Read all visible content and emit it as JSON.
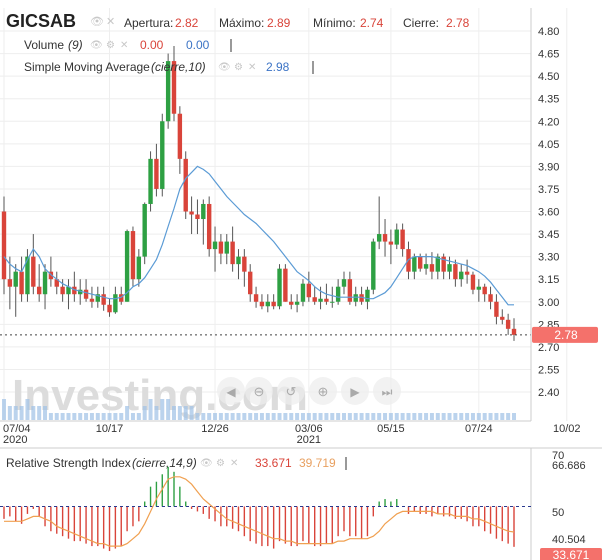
{
  "header": {
    "symbol": "GICSAB",
    "ohlc": [
      {
        "label": "Apertura:",
        "value": "2.82"
      },
      {
        "label": "Máximo:",
        "value": "2.89"
      },
      {
        "label": "Mínimo:",
        "value": "2.74"
      },
      {
        "label": "Cierre:",
        "value": "2.78"
      }
    ],
    "volume": {
      "label": "Volume",
      "param": "(9)",
      "value1": "0.00",
      "value2": "0.00"
    },
    "sma": {
      "label": "Simple Moving Average",
      "param": "(cierre,10)",
      "value": "2.98"
    }
  },
  "rsi_header": {
    "label": "Relative Strength Index",
    "param": "(cierre,14,9)",
    "value1": "33.671",
    "value2": "39.719"
  },
  "watermark": "Investing.com",
  "colors": {
    "up": "#2ea043",
    "down": "#d9443a",
    "sma": "#5b9bd5",
    "rsi_line": "#f0a050",
    "rsi_ref": "#2b3a8f",
    "price_tag_bg": "#f4716b",
    "text_red": "#d9443a",
    "text_blue": "#3b73c5",
    "text_orange": "#e8a060",
    "grid": "#eeeeee"
  },
  "chart_data": [
    {
      "type": "candlestick",
      "title": "GICSAB",
      "x_labels": [
        {
          "index": 0,
          "label": "07/04",
          "sublabel": "2020"
        },
        {
          "index": 18,
          "label": "10/17",
          "sublabel": ""
        },
        {
          "index": 36,
          "label": "12/26",
          "sublabel": ""
        },
        {
          "index": 52,
          "label": "03/06",
          "sublabel": "2021"
        },
        {
          "index": 66,
          "label": "05/15",
          "sublabel": ""
        },
        {
          "index": 81,
          "label": "07/24",
          "sublabel": ""
        },
        {
          "index": 96,
          "label": "10/02",
          "sublabel": ""
        }
      ],
      "y_ticks": [
        "4.80",
        "4.65",
        "4.50",
        "4.35",
        "4.20",
        "4.05",
        "3.90",
        "3.75",
        "3.60",
        "3.45",
        "3.30",
        "3.15",
        "3.00",
        "2.85",
        "2.70",
        "2.55",
        "2.40"
      ],
      "ylim": [
        2.33,
        4.87
      ],
      "last_price": {
        "value": 2.78,
        "label": "2.78"
      },
      "ohlc": [
        [
          3.6,
          3.7,
          3.05,
          3.15
        ],
        [
          3.15,
          3.3,
          2.95,
          3.1
        ],
        [
          3.1,
          3.25,
          2.9,
          3.2
        ],
        [
          3.2,
          3.3,
          3.0,
          3.05
        ],
        [
          3.05,
          3.35,
          3.0,
          3.3
        ],
        [
          3.3,
          3.45,
          3.05,
          3.1
        ],
        [
          3.1,
          3.25,
          3.0,
          3.05
        ],
        [
          3.05,
          3.25,
          2.95,
          3.2
        ],
        [
          3.2,
          3.3,
          3.1,
          3.15
        ],
        [
          3.15,
          3.2,
          3.05,
          3.1
        ],
        [
          3.1,
          3.15,
          3.0,
          3.05
        ],
        [
          3.05,
          3.15,
          2.95,
          3.1
        ],
        [
          3.1,
          3.2,
          3.0,
          3.05
        ],
        [
          3.05,
          3.15,
          2.98,
          3.08
        ],
        [
          3.08,
          3.15,
          3.0,
          3.02
        ],
        [
          3.02,
          3.1,
          2.96,
          3.0
        ],
        [
          3.0,
          3.1,
          2.96,
          3.05
        ],
        [
          3.05,
          3.1,
          2.94,
          2.98
        ],
        [
          2.98,
          3.02,
          2.9,
          2.93
        ],
        [
          2.93,
          3.1,
          2.92,
          3.05
        ],
        [
          3.05,
          3.1,
          2.98,
          3.0
        ],
        [
          3.0,
          3.48,
          3.0,
          3.47
        ],
        [
          3.47,
          3.5,
          3.1,
          3.15
        ],
        [
          3.15,
          3.35,
          3.1,
          3.3
        ],
        [
          3.3,
          3.66,
          3.25,
          3.65
        ],
        [
          3.65,
          4.0,
          3.6,
          3.95
        ],
        [
          3.95,
          4.05,
          3.7,
          3.75
        ],
        [
          3.75,
          4.25,
          3.7,
          4.2
        ],
        [
          4.2,
          4.65,
          4.15,
          4.6
        ],
        [
          4.6,
          4.7,
          4.2,
          4.25
        ],
        [
          4.25,
          4.3,
          3.85,
          3.95
        ],
        [
          3.95,
          4.0,
          3.55,
          3.6
        ],
        [
          3.6,
          3.7,
          3.45,
          3.58
        ],
        [
          3.58,
          3.68,
          3.45,
          3.55
        ],
        [
          3.55,
          3.68,
          3.38,
          3.65
        ],
        [
          3.65,
          3.7,
          3.3,
          3.35
        ],
        [
          3.35,
          3.5,
          3.2,
          3.4
        ],
        [
          3.4,
          3.45,
          3.25,
          3.32
        ],
        [
          3.32,
          3.45,
          3.25,
          3.4
        ],
        [
          3.4,
          3.5,
          3.2,
          3.25
        ],
        [
          3.25,
          3.35,
          3.15,
          3.3
        ],
        [
          3.3,
          3.35,
          3.1,
          3.2
        ],
        [
          3.2,
          3.25,
          3.0,
          3.05
        ],
        [
          3.05,
          3.1,
          2.96,
          3.0
        ],
        [
          3.0,
          3.05,
          2.95,
          2.97
        ],
        [
          2.97,
          3.05,
          2.93,
          3.0
        ],
        [
          3.0,
          3.05,
          2.95,
          2.97
        ],
        [
          2.97,
          3.25,
          2.95,
          3.22
        ],
        [
          3.22,
          3.25,
          3.0,
          3.0
        ],
        [
          3.0,
          3.05,
          2.95,
          2.98
        ],
        [
          2.98,
          3.05,
          2.93,
          3.0
        ],
        [
          3.0,
          3.15,
          2.97,
          3.12
        ],
        [
          3.12,
          3.2,
          3.0,
          3.03
        ],
        [
          3.03,
          3.1,
          2.98,
          3.0
        ],
        [
          3.0,
          3.1,
          2.95,
          3.02
        ],
        [
          3.02,
          3.12,
          2.98,
          3.0
        ],
        [
          3.0,
          3.1,
          2.96,
          3.0
        ],
        [
          3.0,
          3.15,
          2.98,
          3.1
        ],
        [
          3.1,
          3.2,
          3.05,
          3.15
        ],
        [
          3.15,
          3.2,
          2.98,
          3.0
        ],
        [
          3.0,
          3.1,
          2.97,
          3.05
        ],
        [
          3.05,
          3.1,
          2.98,
          3.0
        ],
        [
          3.0,
          3.1,
          2.95,
          3.08
        ],
        [
          3.08,
          3.42,
          3.05,
          3.4
        ],
        [
          3.4,
          3.7,
          3.35,
          3.45
        ],
        [
          3.45,
          3.55,
          3.3,
          3.4
        ],
        [
          3.4,
          3.48,
          3.25,
          3.38
        ],
        [
          3.38,
          3.52,
          3.35,
          3.48
        ],
        [
          3.48,
          3.52,
          3.3,
          3.35
        ],
        [
          3.35,
          3.4,
          3.15,
          3.2
        ],
        [
          3.2,
          3.32,
          3.15,
          3.3
        ],
        [
          3.3,
          3.32,
          3.2,
          3.22
        ],
        [
          3.22,
          3.32,
          3.18,
          3.25
        ],
        [
          3.25,
          3.33,
          3.15,
          3.2
        ],
        [
          3.2,
          3.32,
          3.15,
          3.3
        ],
        [
          3.3,
          3.32,
          3.15,
          3.2
        ],
        [
          3.2,
          3.3,
          3.15,
          3.25
        ],
        [
          3.25,
          3.28,
          3.1,
          3.15
        ],
        [
          3.15,
          3.25,
          3.1,
          3.2
        ],
        [
          3.2,
          3.28,
          3.12,
          3.18
        ],
        [
          3.18,
          3.2,
          3.05,
          3.08
        ],
        [
          3.08,
          3.15,
          3.0,
          3.1
        ],
        [
          3.1,
          3.12,
          3.0,
          3.05
        ],
        [
          3.05,
          3.1,
          2.95,
          3.0
        ],
        [
          3.0,
          3.05,
          2.85,
          2.9
        ],
        [
          2.9,
          2.95,
          2.85,
          2.88
        ],
        [
          2.88,
          2.92,
          2.78,
          2.82
        ],
        [
          2.82,
          2.89,
          2.74,
          2.78
        ]
      ],
      "sma": [
        3.3,
        3.25,
        3.22,
        3.2,
        3.28,
        3.35,
        3.3,
        3.22,
        3.18,
        3.15,
        3.12,
        3.1,
        3.08,
        3.07,
        3.06,
        3.05,
        3.04,
        3.03,
        3.02,
        3.02,
        3.03,
        3.06,
        3.1,
        3.12,
        3.16,
        3.22,
        3.28,
        3.38,
        3.5,
        3.62,
        3.75,
        3.82,
        3.86,
        3.9,
        3.88,
        3.85,
        3.8,
        3.75,
        3.7,
        3.66,
        3.62,
        3.58,
        3.55,
        3.52,
        3.48,
        3.44,
        3.4,
        3.35,
        3.3,
        3.25,
        3.2,
        3.17,
        3.14,
        3.1,
        3.07,
        3.05,
        3.04,
        3.03,
        3.03,
        3.03,
        3.03,
        3.03,
        3.02,
        3.02,
        3.04,
        3.06,
        3.1,
        3.16,
        3.22,
        3.28,
        3.3,
        3.3,
        3.3,
        3.3,
        3.29,
        3.28,
        3.27,
        3.26,
        3.25,
        3.24,
        3.22,
        3.2,
        3.17,
        3.13,
        3.08,
        3.03,
        2.98,
        2.98
      ],
      "volume": [
        3,
        2,
        2,
        2,
        3,
        2,
        2,
        2,
        1,
        1,
        1,
        1,
        1,
        1,
        1,
        1,
        1,
        1,
        1,
        1,
        1,
        2,
        1,
        1,
        2,
        3,
        2,
        3,
        3,
        2,
        2,
        2,
        2,
        1,
        1,
        1,
        1,
        1,
        1,
        1,
        1,
        1,
        1,
        1,
        1,
        1,
        1,
        1,
        1,
        1,
        1,
        1,
        1,
        1,
        1,
        1,
        1,
        1,
        1,
        1,
        1,
        1,
        1,
        1,
        1,
        1,
        1,
        1,
        1,
        1,
        1,
        1,
        1,
        1,
        1,
        1,
        1,
        1,
        1,
        1,
        1,
        1,
        1,
        1,
        1,
        1,
        1,
        1
      ]
    },
    {
      "type": "line",
      "title": "Relative Strength Index",
      "y_ticks": [
        "70",
        "66.686",
        "50",
        "40.504",
        "33.671"
      ],
      "ylim": [
        30,
        72
      ],
      "reference": 50,
      "rsi": [
        45,
        46,
        44,
        43,
        47,
        49,
        46,
        42,
        40,
        39,
        38,
        37,
        36,
        36,
        35,
        34,
        34,
        33,
        32,
        33,
        34,
        40,
        42,
        44,
        52,
        58,
        60,
        63,
        66,
        64,
        58,
        52,
        49,
        48,
        47,
        45,
        44,
        42,
        42,
        41,
        40,
        38,
        36,
        35,
        34,
        34,
        33,
        36,
        35,
        34,
        34,
        36,
        35,
        34,
        34,
        35,
        35,
        38,
        40,
        38,
        38,
        37,
        38,
        46,
        52,
        53,
        52,
        53,
        50,
        47,
        48,
        47,
        47,
        46,
        47,
        46,
        46,
        45,
        45,
        44,
        42,
        42,
        40,
        39,
        37,
        36,
        35,
        33.7
      ],
      "signal": [
        44,
        44,
        44,
        44,
        45,
        46,
        46,
        45,
        44,
        42,
        41,
        40,
        39,
        38,
        37,
        36,
        35,
        35,
        34,
        34,
        34,
        35,
        37,
        39,
        43,
        48,
        53,
        57,
        61,
        62,
        62,
        61,
        59,
        56,
        53,
        51,
        49,
        47,
        45,
        44,
        43,
        42,
        41,
        40,
        39,
        38,
        37,
        37,
        36,
        36,
        35,
        35,
        35,
        35,
        35,
        35,
        35,
        36,
        36,
        37,
        37,
        37,
        37,
        38,
        40,
        43,
        45,
        47,
        48,
        48,
        48,
        48,
        48,
        48,
        47,
        47,
        47,
        46,
        46,
        46,
        45,
        45,
        44,
        43,
        42,
        41,
        40,
        39.7
      ]
    }
  ]
}
